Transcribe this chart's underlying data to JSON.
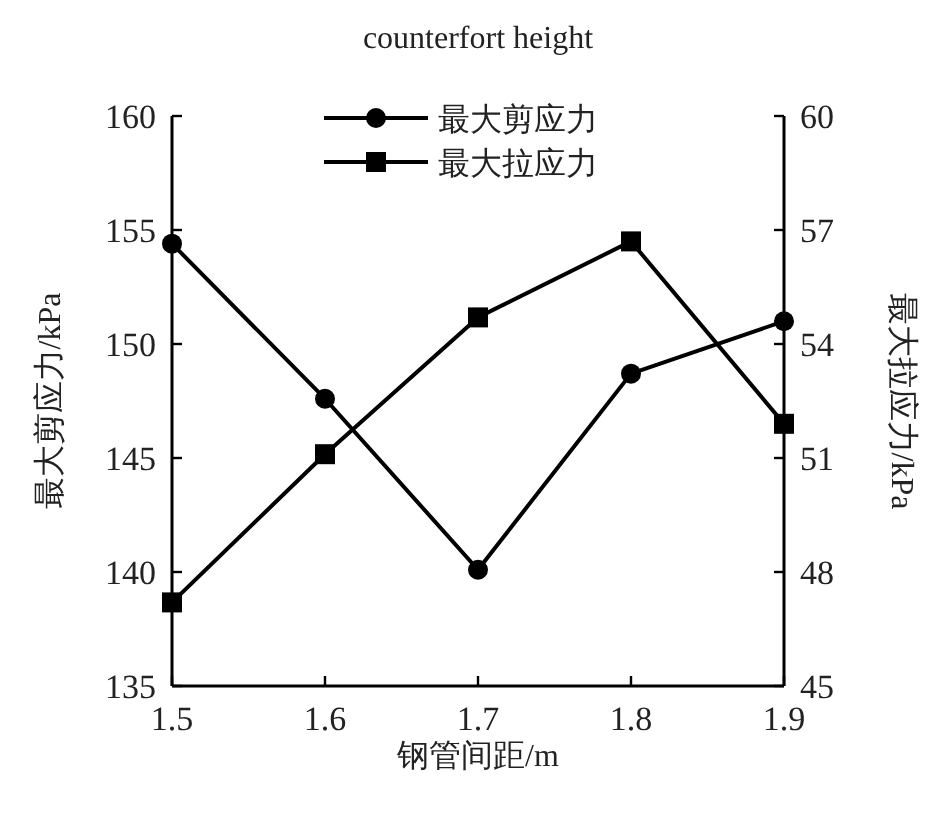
{
  "chart_data": {
    "type": "line",
    "title": "counterfort height",
    "xlabel": "钢管间距/m",
    "ylabel": "最大剪应力/kPa",
    "y2label": "最大拉应力/kPa",
    "x": [
      1.5,
      1.6,
      1.7,
      1.8,
      1.9
    ],
    "xlim": [
      1.5,
      1.9
    ],
    "xticks": [
      1.5,
      1.6,
      1.7,
      1.8,
      1.9
    ],
    "ylim": [
      135,
      160
    ],
    "yticks": [
      135,
      140,
      145,
      150,
      155,
      160
    ],
    "y2lim": [
      45,
      60
    ],
    "y2ticks": [
      45,
      48,
      51,
      54,
      57,
      60
    ],
    "grid": false,
    "legend": "top",
    "line_style": "solid",
    "series": [
      {
        "name": "最大剪应力",
        "color": "#000000",
        "marker": "circle",
        "values": [
          154.4,
          147.6,
          140.1,
          148.7,
          151.0
        ]
      },
      {
        "name": "最大拉应力",
        "color": "#000000",
        "marker": "square",
        "axis": "y2",
        "values": [
          47.2,
          51.1,
          54.7,
          56.7,
          51.9
        ]
      }
    ]
  }
}
